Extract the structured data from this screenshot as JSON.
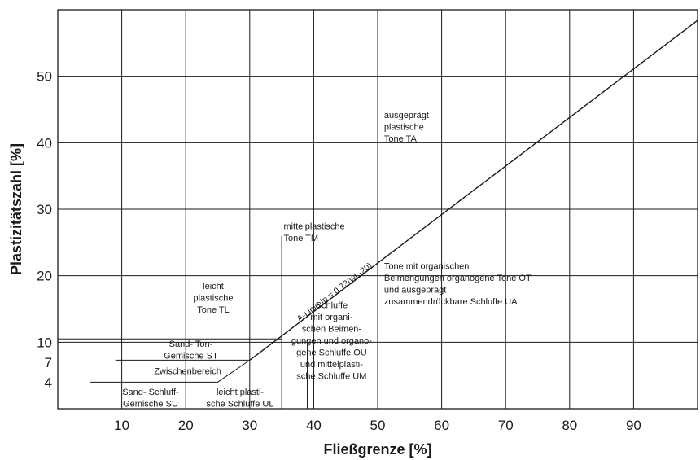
{
  "chart_data": {
    "type": "line",
    "title": "",
    "xlabel": "Fließgrenze [%]",
    "ylabel": "Plastizitätszahl [%]",
    "xlim": [
      0,
      100
    ],
    "ylim": [
      0,
      60
    ],
    "grid": true,
    "x_ticks": [
      {
        "value": 10,
        "label": "10"
      },
      {
        "value": 20,
        "label": "20"
      },
      {
        "value": 30,
        "label": "30"
      },
      {
        "value": 40,
        "label": "40"
      },
      {
        "value": 50,
        "label": "50"
      },
      {
        "value": 60,
        "label": "60"
      },
      {
        "value": 70,
        "label": "70"
      },
      {
        "value": 80,
        "label": "80"
      },
      {
        "value": 90,
        "label": "90"
      }
    ],
    "y_ticks": [
      {
        "value": 4,
        "label": "4"
      },
      {
        "value": 7,
        "label": "7"
      },
      {
        "value": 10,
        "label": "10"
      },
      {
        "value": 20,
        "label": "20"
      },
      {
        "value": 30,
        "label": "30"
      },
      {
        "value": 40,
        "label": "40"
      },
      {
        "value": 50,
        "label": "50"
      }
    ],
    "x_gridlines": [
      10,
      20,
      30,
      40,
      50,
      60,
      70,
      80,
      90
    ],
    "y_gridlines": [
      10,
      20,
      30,
      40,
      50
    ],
    "a_line": {
      "label": "A-Linie Ip = 0,73(wL-20)",
      "points": [
        [
          30,
          7.3
        ],
        [
          100,
          58.4
        ]
      ]
    },
    "boundaries": [
      {
        "name": "ip-10",
        "points": [
          [
            0,
            10.5
          ],
          [
            35,
            10.5
          ]
        ]
      },
      {
        "name": "ip-7",
        "points": [
          [
            9,
            7.3
          ],
          [
            30,
            7.3
          ]
        ]
      },
      {
        "name": "ip-4",
        "points": [
          [
            5,
            4
          ],
          [
            25,
            4
          ],
          [
            30,
            7.3
          ]
        ]
      },
      {
        "name": "wl-35",
        "points": [
          [
            35,
            0
          ],
          [
            35,
            26
          ]
        ]
      },
      {
        "name": "wl-39",
        "points": [
          [
            39,
            0
          ],
          [
            39,
            10.5
          ]
        ]
      },
      {
        "name": "wl-40",
        "points": [
          [
            40,
            0
          ],
          [
            40,
            10.5
          ]
        ]
      },
      {
        "name": "wl-50",
        "points": [
          [
            50,
            0
          ],
          [
            50,
            21.9
          ]
        ]
      }
    ],
    "regions": [
      {
        "name": "SU",
        "lines": [
          "Sand- Schluff-",
          "Gemische SU"
        ],
        "at": [
          14.5,
          2.1
        ]
      },
      {
        "name": "Zwischenbereich",
        "lines": [
          "Zwischenbereich"
        ],
        "at": [
          20.3,
          5.2
        ]
      },
      {
        "name": "ST",
        "lines": [
          "Sand- Ton-",
          "Gemische ST"
        ],
        "at": [
          20.8,
          9.3
        ]
      },
      {
        "name": "UL",
        "lines": [
          "leicht plasti-",
          "sche Schluffe UL"
        ],
        "at": [
          28.5,
          2.1
        ]
      },
      {
        "name": "TL",
        "lines": [
          "leicht",
          "plastische",
          "Tone TL"
        ],
        "at": [
          24.3,
          18.0
        ]
      },
      {
        "name": "TM",
        "lines": [
          "mittelplastische",
          "Tone TM"
        ],
        "at": [
          35.3,
          27.0
        ]
      },
      {
        "name": "OU-UM",
        "lines": [
          "Schluffe",
          "mit organi-",
          "schen Beimen-",
          "gungen und organo-",
          "gene Schluffe OU",
          "und mittelplasti-",
          "sche Schluffe UM"
        ],
        "at": [
          42.8,
          15.1
        ]
      },
      {
        "name": "TA",
        "lines": [
          "ausgeprägt",
          "plastische",
          "Tone TA"
        ],
        "at": [
          51.0,
          43.7
        ]
      },
      {
        "name": "OT-UA",
        "lines": [
          "Tone mit organischen",
          "Beimengungen organogene Tone OT",
          "und ausgeprägt",
          "zusammendrückbare Schluffe UA"
        ],
        "at": [
          51.0,
          21.0
        ]
      }
    ]
  }
}
